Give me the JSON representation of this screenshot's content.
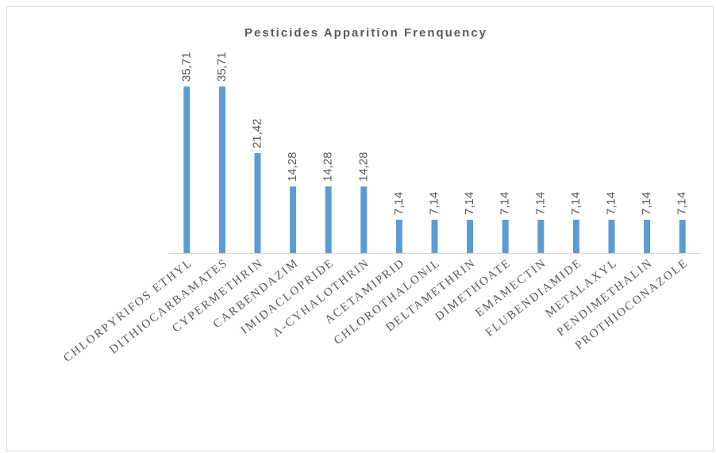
{
  "chart_data": {
    "type": "bar",
    "title": "Pesticides Apparition Frenquency",
    "categories": [
      "CHLORPYRIFOS ETHYL",
      "DITHIOCARBAMATES",
      "CYPERMETHRIN",
      "CARBENDAZIM",
      "IMIDACLOPRIDE",
      "Λ-CYHALOTHRIN",
      "ACETAMIPRID",
      "CHLOROTHALONIL",
      "DELTAMETHRIN",
      "DIMETHOATE",
      "EMAMECTIN",
      "FLUBENDIAMIDE",
      "METALAXYL",
      "PENDIMETHALIN",
      "PROTHIOCONAZOLE"
    ],
    "values": [
      35.71,
      35.71,
      21.42,
      14.28,
      14.28,
      14.28,
      7.14,
      7.14,
      7.14,
      7.14,
      7.14,
      7.14,
      7.14,
      7.14,
      7.14
    ],
    "value_labels": [
      "35,71",
      "35,71",
      "21,42",
      "14,28",
      "14,28",
      "14,28",
      "7,14",
      "7,14",
      "7,14",
      "7,14",
      "7,14",
      "7,14",
      "7,14",
      "7,14",
      "7,14"
    ],
    "color": "#5b9bd5"
  }
}
